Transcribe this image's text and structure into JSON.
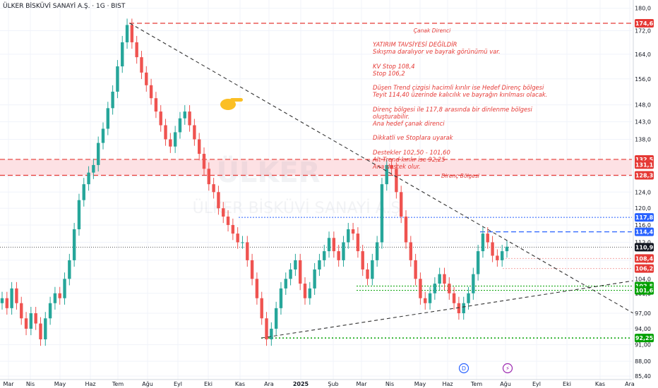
{
  "header": {
    "title": "ÜLKER BİSKÜVİ SANAYİ A.Ş. · 1G · BIST"
  },
  "watermark": {
    "line1": "ÜLKER",
    "line2": "ÜLKER BİSKÜVİ SANAYİ A.Ş"
  },
  "colors": {
    "up": "#26a69a",
    "down": "#ef5350",
    "resistance": "#e53935",
    "support": "#00a000",
    "blue": "#2962ff",
    "trend": "#333333",
    "zone": "#fde1e4",
    "accent": "#fbbf24"
  },
  "annotations": {
    "lines": [
      "YATIRIM TAVSİYESİ DEĞİLDİR",
      "Sıkışma daralıyor ve bayrak görünümü var.",
      "",
      "KV Stop 108,4",
      "Stop 106,2",
      "",
      "Düşen Trend çizgisi hacimli kırılır ise Hedef Direnç bölgesi",
      "Teyit 114,40 üzerinde kalıcılık ve bayrağın kırılması olacak.",
      "",
      "Direnç bölgesi ile 117,8 arasında bir dinlenme bölgesi",
      "oluşturabilir.",
      "Ana hedef çanak direnci",
      "",
      "Dikkatli ve Stoplara uyarak",
      "",
      "Destekler 102,50 - 101,60",
      "Alt Trend kırılır ise 92,25",
      "Ana destek olur."
    ],
    "canak_label": "Çanak Direnci",
    "zone_label": "Direnç Bölgesi"
  },
  "chart_data": {
    "type": "candlestick",
    "y_axis": {
      "scale": "log",
      "range": [
        84.8,
        182
      ],
      "ticks": [
        "180,0",
        "172,0",
        "164,0",
        "156,0",
        "148,0",
        "143,0",
        "138,0",
        "132,0",
        "128,0",
        "124,0",
        "120,0",
        "116,0",
        "112,0",
        "108,0",
        "104,0",
        "101,0",
        "97,00",
        "94,00",
        "91,00",
        "88,00",
        "85,40"
      ]
    },
    "x_axis": {
      "labels": [
        "Mar",
        "Nis",
        "May",
        "Haz",
        "Tem",
        "Ağu",
        "Eyl",
        "Eki",
        "Kas",
        "Ara",
        "2025",
        "Şub",
        "Mar",
        "Nis",
        "May",
        "Haz",
        "Tem",
        "Ağu",
        "Eyl",
        "Eki",
        "Kas",
        "Ara"
      ]
    },
    "price_labels": [
      {
        "text": "174,6",
        "kind": "resistance"
      },
      {
        "text": "132,5",
        "kind": "resistance"
      },
      {
        "text": "131,1",
        "kind": "resistance"
      },
      {
        "text": "128,3",
        "kind": "resistance"
      },
      {
        "text": "117,8",
        "kind": "blue"
      },
      {
        "text": "114,4",
        "kind": "blue"
      },
      {
        "text": "110,9",
        "kind": "last"
      },
      {
        "text": "108,4",
        "kind": "resistance"
      },
      {
        "text": "106,2",
        "kind": "resistance"
      },
      {
        "text": "102,5",
        "kind": "support"
      },
      {
        "text": "101,6",
        "kind": "support"
      },
      {
        "text": "92,25",
        "kind": "support"
      }
    ],
    "levels": {
      "canak": 174.6,
      "zone_top": 132.5,
      "zone_mid": 131.1,
      "zone_bottom": 128.3,
      "r1": 117.8,
      "r2": 114.4,
      "last": 110.9,
      "kv_stop": 108.4,
      "stop": 106.2,
      "s1": 102.5,
      "s2": 101.6,
      "s3": 92.25
    },
    "trendlines": [
      {
        "name": "descending",
        "from": {
          "date": "2024-07-15",
          "price": 174.6
        },
        "to": {
          "date": "2025-09-30",
          "price": 97.0
        }
      },
      {
        "name": "ascending",
        "from": {
          "date": "2024-11-18",
          "price": 92.25
        },
        "to": {
          "date": "2025-09-30",
          "price": 103.6
        }
      }
    ],
    "events": [
      "D",
      "⚡"
    ],
    "closes": [
      100,
      98,
      102,
      99,
      96,
      94,
      97,
      95,
      92,
      96,
      99,
      101,
      100,
      104,
      108,
      115,
      122,
      126,
      129,
      131,
      137,
      141,
      147,
      152,
      160,
      168,
      174,
      168,
      163,
      158,
      154,
      150,
      146,
      142,
      138,
      136,
      140,
      144,
      146,
      142,
      138,
      134,
      130,
      126,
      124,
      120,
      118,
      116,
      114,
      112,
      112,
      108,
      104,
      100,
      96,
      92,
      94,
      98,
      102,
      104,
      106,
      108,
      103,
      100,
      102,
      106,
      108,
      110,
      113,
      110,
      108,
      112,
      115,
      114,
      110,
      106,
      104,
      108,
      112,
      126,
      131,
      130,
      124,
      118,
      112,
      108,
      104,
      100,
      99,
      101,
      103,
      105,
      103,
      101,
      99,
      97,
      99,
      101,
      105,
      110,
      114,
      112,
      109,
      108,
      110,
      111
    ]
  }
}
